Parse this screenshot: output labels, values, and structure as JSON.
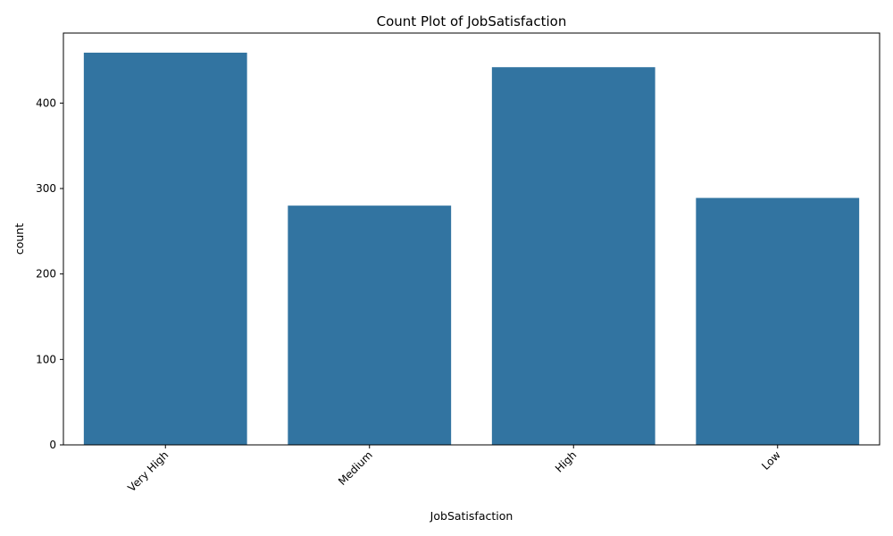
{
  "chart_data": {
    "type": "bar",
    "title": "Count Plot of JobSatisfaction",
    "xlabel": "JobSatisfaction",
    "ylabel": "count",
    "categories": [
      "Very High",
      "Medium",
      "High",
      "Low"
    ],
    "values": [
      459,
      280,
      442,
      289
    ],
    "yticks": [
      0,
      100,
      200,
      300,
      400
    ],
    "ylim": [
      0,
      481.95
    ],
    "bar_color": "#3274a1",
    "grid": false,
    "legend": "none",
    "xtick_rotation": 45
  }
}
